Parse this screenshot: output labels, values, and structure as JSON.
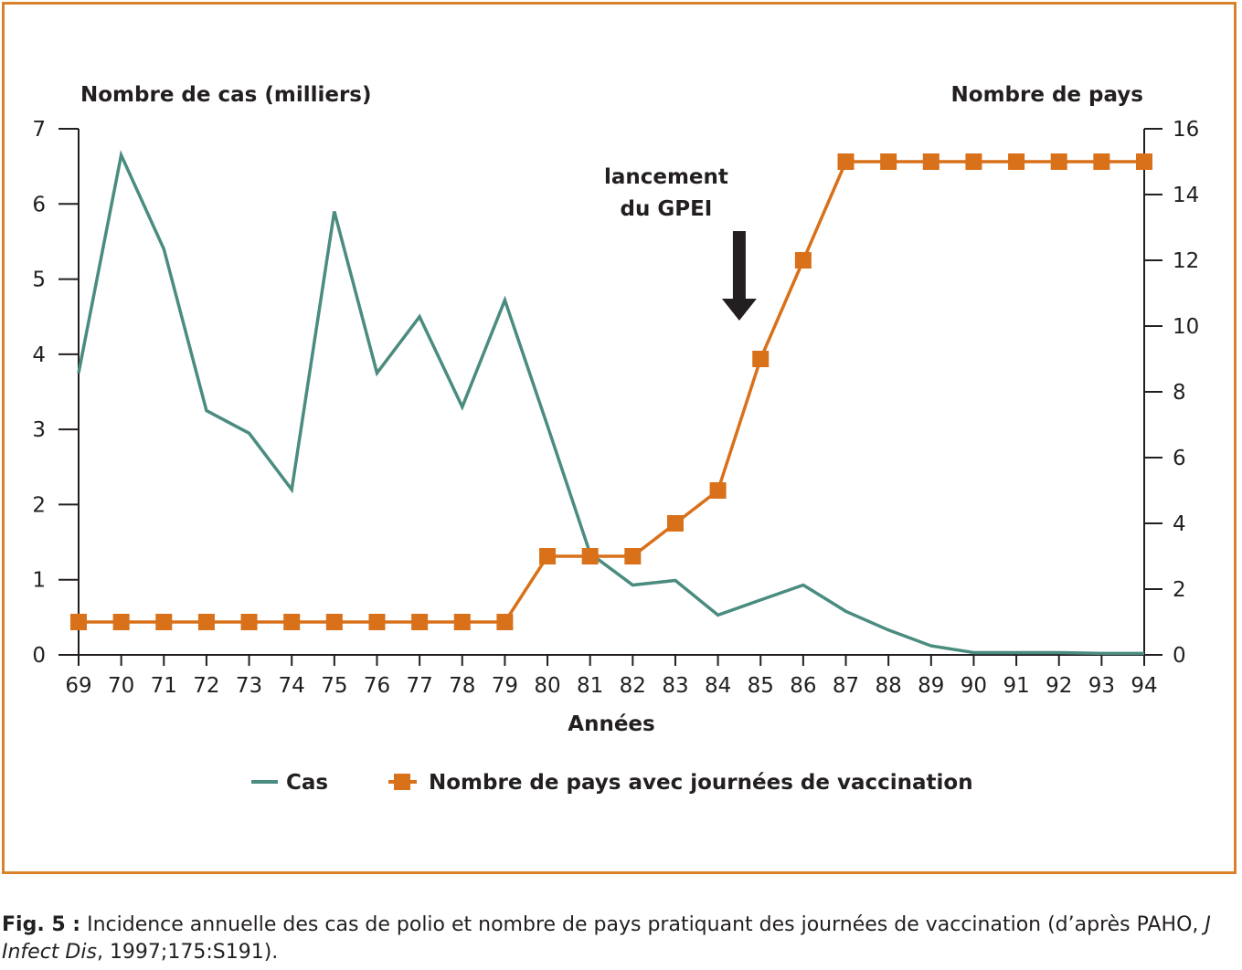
{
  "chart_data": {
    "type": "line",
    "title": "",
    "xlabel": "Années",
    "ylabel_left": "Nombre de cas (milliers)",
    "ylabel_right": "Nombre de pays",
    "x": [
      "69",
      "70",
      "71",
      "72",
      "73",
      "74",
      "75",
      "76",
      "77",
      "78",
      "79",
      "80",
      "81",
      "82",
      "83",
      "84",
      "85",
      "86",
      "87",
      "88",
      "89",
      "90",
      "91",
      "92",
      "93",
      "94"
    ],
    "ylim_left": [
      0,
      7
    ],
    "yticks_left": [
      0,
      1,
      2,
      3,
      4,
      5,
      6,
      7
    ],
    "ylim_right": [
      0,
      16
    ],
    "yticks_right": [
      0,
      2,
      4,
      6,
      8,
      10,
      12,
      14,
      16
    ],
    "grid": false,
    "legend_position": "bottom",
    "series": [
      {
        "name": "Cas",
        "axis": "left",
        "color": "#4a8c7f",
        "marker": "none",
        "values": [
          3.75,
          6.65,
          5.4,
          3.25,
          2.95,
          2.2,
          5.9,
          3.75,
          4.5,
          3.3,
          4.72,
          3.05,
          1.35,
          0.93,
          0.99,
          0.53,
          0.73,
          0.93,
          0.58,
          0.33,
          0.12,
          0.03,
          0.03,
          0.03,
          0.02,
          0.02
        ]
      },
      {
        "name": "Nombre de pays avec journées de vaccination",
        "axis": "right",
        "color": "#d9701a",
        "marker": "square",
        "values": [
          1,
          1,
          1,
          1,
          1,
          1,
          1,
          1,
          1,
          1,
          1,
          3,
          3,
          3,
          4,
          5,
          9,
          12,
          15,
          15,
          15,
          15,
          15,
          15,
          15,
          15
        ]
      }
    ],
    "annotation": {
      "lines": [
        "lancement",
        "du GPEI"
      ],
      "x": 84.5,
      "arrow": "down"
    }
  },
  "caption": {
    "label": "Fig. 5 :",
    "text_before": " Incidence annuelle des cas de polio et nombre de pays pratiquant des journées de vaccination (d’après PAHO, ",
    "journal": "J Infect Dis",
    "text_after": ", 1997;175:S191)."
  },
  "colors": {
    "frame": "#d9822b",
    "axis": "#231f20",
    "arrow": "#231f20"
  }
}
